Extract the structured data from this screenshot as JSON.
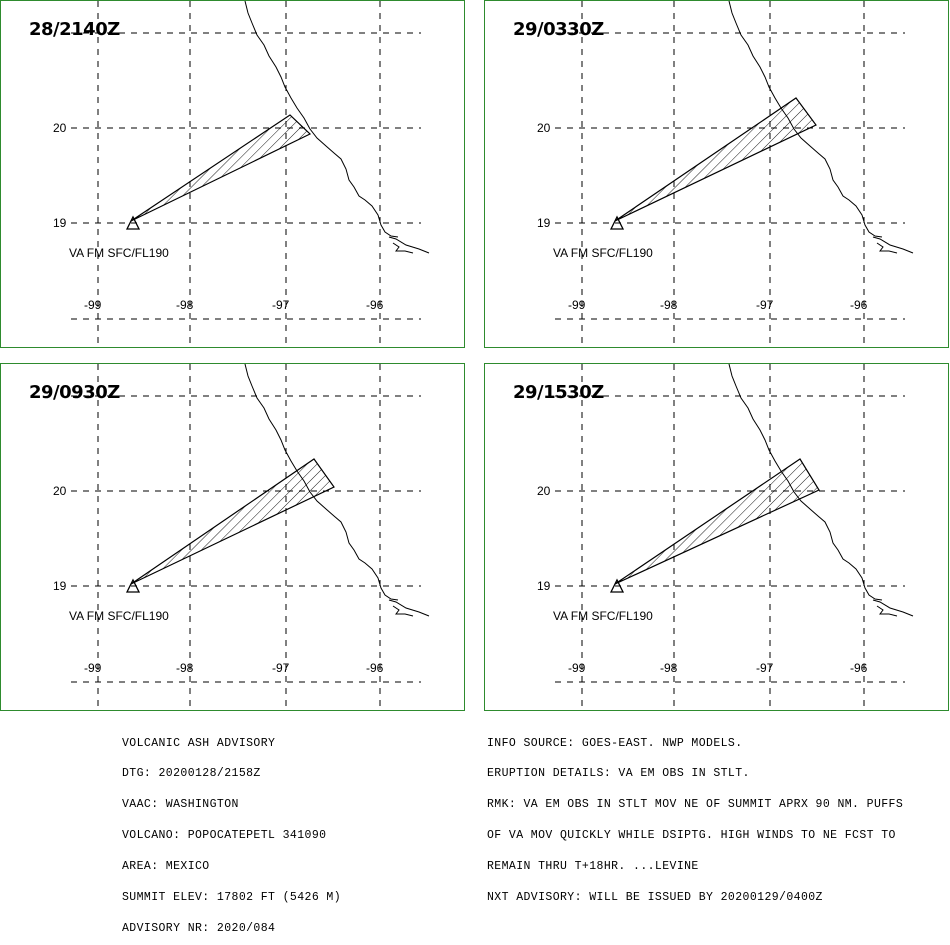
{
  "panels": [
    {
      "title": "28/2140Z",
      "flight_level": "VA FM SFC/FL190"
    },
    {
      "title": "29/0330Z",
      "flight_level": "VA FM SFC/FL190"
    },
    {
      "title": "29/0930Z",
      "flight_level": "VA FM SFC/FL190"
    },
    {
      "title": "29/1530Z",
      "flight_level": "VA FM SFC/FL190"
    }
  ],
  "axes": {
    "lat_labels": [
      "20",
      "19"
    ],
    "lon_labels": [
      "-99",
      "-98",
      "-97",
      "-96"
    ]
  },
  "advisory_left": [
    "VOLCANIC ASH ADVISORY",
    "DTG: 20200128/2158Z",
    "VAAC: WASHINGTON",
    "VOLCANO: POPOCATEPETL 341090",
    "AREA: MEXICO",
    "SUMMIT ELEV: 17802 FT (5426 M)",
    "ADVISORY NR: 2020/084"
  ],
  "advisory_right": [
    "INFO SOURCE: GOES-EAST. NWP MODELS.",
    "ERUPTION DETAILS: VA EM OBS IN STLT.",
    "RMK: VA EM OBS IN STLT MOV NE OF SUMMIT APRX 90 NM. PUFFS",
    "OF VA MOV QUICKLY WHILE DSIPTG. HIGH WINDS TO NE FCST TO",
    "REMAIN THRU T+18HR. ...LEVINE",
    "NXT ADVISORY: WILL BE ISSUED BY 20200129/0400Z"
  ]
}
